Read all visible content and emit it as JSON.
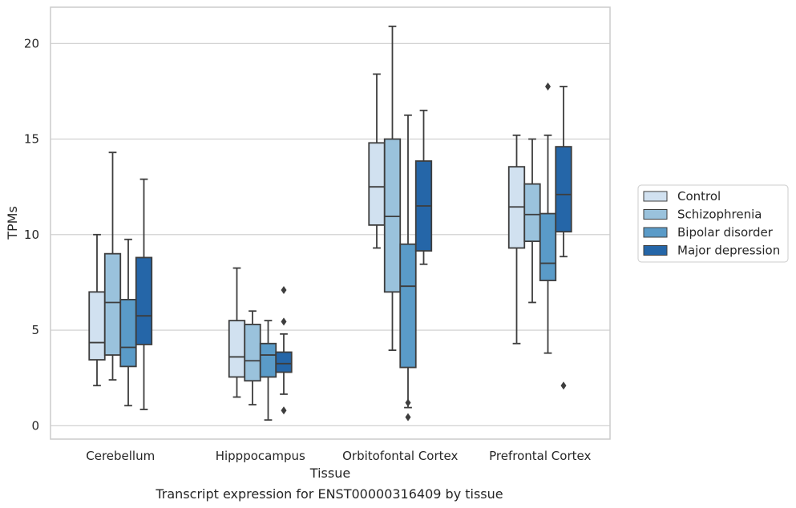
{
  "chart_data": {
    "type": "box",
    "title": "",
    "caption": "Transcript expression for ENST00000316409 by tissue",
    "xlabel": "Tissue",
    "ylabel": "TPMs",
    "ylim": [
      -0.7,
      21.9
    ],
    "yticks": [
      0,
      5,
      10,
      15,
      20
    ],
    "grid": true,
    "legend_position": "right",
    "categories": [
      "Cerebellum",
      "Hipppocampus",
      "Orbitofontal Cortex",
      "Prefrontal Cortex"
    ],
    "series": [
      {
        "name": "Control",
        "color": "#d1e1f0",
        "boxes": [
          {
            "whisker_low": 2.1,
            "q1": 3.45,
            "median": 4.35,
            "q3": 7.0,
            "whisker_high": 10.0,
            "outliers": []
          },
          {
            "whisker_low": 1.5,
            "q1": 2.55,
            "median": 3.6,
            "q3": 5.5,
            "whisker_high": 8.25,
            "outliers": []
          },
          {
            "whisker_low": 9.3,
            "q1": 10.5,
            "median": 12.5,
            "q3": 14.8,
            "whisker_high": 18.4,
            "outliers": []
          },
          {
            "whisker_low": 4.3,
            "q1": 9.3,
            "median": 11.45,
            "q3": 13.55,
            "whisker_high": 15.2,
            "outliers": []
          }
        ]
      },
      {
        "name": "Schizophrenia",
        "color": "#9ac2dc",
        "boxes": [
          {
            "whisker_low": 2.4,
            "q1": 3.7,
            "median": 6.45,
            "q3": 9.0,
            "whisker_high": 14.3,
            "outliers": []
          },
          {
            "whisker_low": 1.1,
            "q1": 2.35,
            "median": 3.4,
            "q3": 5.3,
            "whisker_high": 6.0,
            "outliers": []
          },
          {
            "whisker_low": 3.95,
            "q1": 7.0,
            "median": 10.95,
            "q3": 15.0,
            "whisker_high": 20.9,
            "outliers": []
          },
          {
            "whisker_low": 6.45,
            "q1": 9.65,
            "median": 11.05,
            "q3": 12.65,
            "whisker_high": 15.0,
            "outliers": []
          }
        ]
      },
      {
        "name": "Bipolar disorder",
        "color": "#5a9bc8",
        "boxes": [
          {
            "whisker_low": 1.05,
            "q1": 3.1,
            "median": 4.1,
            "q3": 6.6,
            "whisker_high": 9.75,
            "outliers": []
          },
          {
            "whisker_low": 0.3,
            "q1": 2.55,
            "median": 3.7,
            "q3": 4.3,
            "whisker_high": 5.5,
            "outliers": []
          },
          {
            "whisker_low": 0.95,
            "q1": 3.05,
            "median": 7.3,
            "q3": 9.5,
            "whisker_high": 16.25,
            "outliers": [
              1.2,
              0.45
            ]
          },
          {
            "whisker_low": 3.8,
            "q1": 7.6,
            "median": 8.5,
            "q3": 11.1,
            "whisker_high": 15.2,
            "outliers": [
              17.75
            ]
          }
        ]
      },
      {
        "name": "Major depression",
        "color": "#2566a8",
        "boxes": [
          {
            "whisker_low": 0.85,
            "q1": 4.25,
            "median": 5.75,
            "q3": 8.8,
            "whisker_high": 12.9,
            "outliers": []
          },
          {
            "whisker_low": 1.65,
            "q1": 2.8,
            "median": 3.25,
            "q3": 3.85,
            "whisker_high": 4.8,
            "outliers": [
              7.1,
              5.45,
              0.8
            ]
          },
          {
            "whisker_low": 8.45,
            "q1": 9.15,
            "median": 11.5,
            "q3": 13.85,
            "whisker_high": 16.5,
            "outliers": []
          },
          {
            "whisker_low": 8.85,
            "q1": 10.15,
            "median": 12.1,
            "q3": 14.6,
            "whisker_high": 17.75,
            "outliers": [
              2.1
            ]
          }
        ]
      }
    ]
  }
}
